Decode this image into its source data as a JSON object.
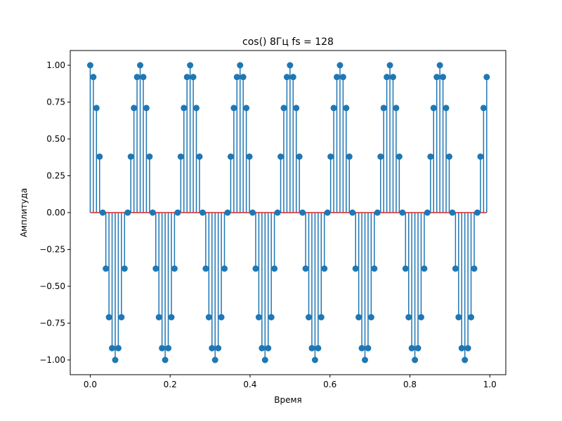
{
  "chart_data": {
    "type": "stem",
    "title": "cos() 8Гц fs = 128",
    "xlabel": "Время",
    "ylabel": "Амплитуда",
    "frequency_hz": 8,
    "sample_rate": 128,
    "xlim": [
      -0.05,
      1.04
    ],
    "ylim": [
      -1.1,
      1.1
    ],
    "xticks": [
      0.0,
      0.2,
      0.4,
      0.6,
      0.8,
      1.0
    ],
    "xtick_labels": [
      "0.0",
      "0.2",
      "0.4",
      "0.6",
      "0.8",
      "1.0"
    ],
    "yticks": [
      -1.0,
      -0.75,
      -0.5,
      -0.25,
      0.0,
      0.25,
      0.5,
      0.75,
      1.0
    ],
    "ytick_labels": [
      "−1.00",
      "−0.75",
      "−0.50",
      "−0.25",
      "0.00",
      "0.25",
      "0.50",
      "0.75",
      "1.00"
    ],
    "x": [
      0.0,
      0.0078,
      0.0156,
      0.0234,
      0.0313,
      0.0391,
      0.0469,
      0.0547,
      0.0625,
      0.0703,
      0.0781,
      0.0859,
      0.0938,
      0.1016,
      0.1094,
      0.1172,
      0.125,
      0.1328,
      0.1406,
      0.1484,
      0.1563,
      0.1641,
      0.1719,
      0.1797,
      0.1875,
      0.1953,
      0.2031,
      0.2109,
      0.2188,
      0.2266,
      0.2344,
      0.2422,
      0.25,
      0.2578,
      0.2656,
      0.2734,
      0.2813,
      0.2891,
      0.2969,
      0.3047,
      0.3125,
      0.3203,
      0.3281,
      0.3359,
      0.3438,
      0.3516,
      0.3594,
      0.3672,
      0.375,
      0.3828,
      0.3906,
      0.3984,
      0.4063,
      0.4141,
      0.4219,
      0.4297,
      0.4375,
      0.4453,
      0.4531,
      0.4609,
      0.4688,
      0.4766,
      0.4844,
      0.4922,
      0.5,
      0.5078,
      0.5156,
      0.5234,
      0.5313,
      0.5391,
      0.5469,
      0.5547,
      0.5625,
      0.5703,
      0.5781,
      0.5859,
      0.5938,
      0.6016,
      0.6094,
      0.6172,
      0.625,
      0.6328,
      0.6406,
      0.6484,
      0.6563,
      0.6641,
      0.6719,
      0.6797,
      0.6875,
      0.6953,
      0.7031,
      0.7109,
      0.7188,
      0.7266,
      0.7344,
      0.7422,
      0.75,
      0.7578,
      0.7656,
      0.7734,
      0.7813,
      0.7891,
      0.7969,
      0.8047,
      0.8125,
      0.8203,
      0.8281,
      0.8359,
      0.8438,
      0.8516,
      0.8594,
      0.8672,
      0.875,
      0.8828,
      0.8906,
      0.8984,
      0.9063,
      0.9141,
      0.9219,
      0.9297,
      0.9375,
      0.9453,
      0.9531,
      0.9609,
      0.9688,
      0.9766,
      0.9844,
      0.9922
    ],
    "y": [
      1.0,
      0.92,
      0.71,
      0.38,
      0.0,
      -0.38,
      -0.71,
      -0.92,
      -1.0,
      -0.92,
      -0.71,
      -0.38,
      0.0,
      0.38,
      0.71,
      0.92,
      1.0,
      0.92,
      0.71,
      0.38,
      0.0,
      -0.38,
      -0.71,
      -0.92,
      -1.0,
      -0.92,
      -0.71,
      -0.38,
      0.0,
      0.38,
      0.71,
      0.92,
      1.0,
      0.92,
      0.71,
      0.38,
      0.0,
      -0.38,
      -0.71,
      -0.92,
      -1.0,
      -0.92,
      -0.71,
      -0.38,
      0.0,
      0.38,
      0.71,
      0.92,
      1.0,
      0.92,
      0.71,
      0.38,
      0.0,
      -0.38,
      -0.71,
      -0.92,
      -1.0,
      -0.92,
      -0.71,
      -0.38,
      0.0,
      0.38,
      0.71,
      0.92,
      1.0,
      0.92,
      0.71,
      0.38,
      0.0,
      -0.38,
      -0.71,
      -0.92,
      -1.0,
      -0.92,
      -0.71,
      -0.38,
      0.0,
      0.38,
      0.71,
      0.92,
      1.0,
      0.92,
      0.71,
      0.38,
      0.0,
      -0.38,
      -0.71,
      -0.92,
      -1.0,
      -0.92,
      -0.71,
      -0.38,
      0.0,
      0.38,
      0.71,
      0.92,
      1.0,
      0.92,
      0.71,
      0.38,
      0.0,
      -0.38,
      -0.71,
      -0.92,
      -1.0,
      -0.92,
      -0.71,
      -0.38,
      0.0,
      0.38,
      0.71,
      0.92,
      1.0,
      0.92,
      0.71,
      0.38,
      0.0,
      -0.38,
      -0.71,
      -0.92,
      -1.0,
      -0.92,
      -0.71,
      -0.38,
      0.0,
      0.38,
      0.71,
      0.92
    ],
    "baseline": 0.0,
    "grid": false,
    "colors": {
      "stem": "#1f77b4",
      "marker": "#1f77b4",
      "baseline": "#d62728"
    }
  }
}
